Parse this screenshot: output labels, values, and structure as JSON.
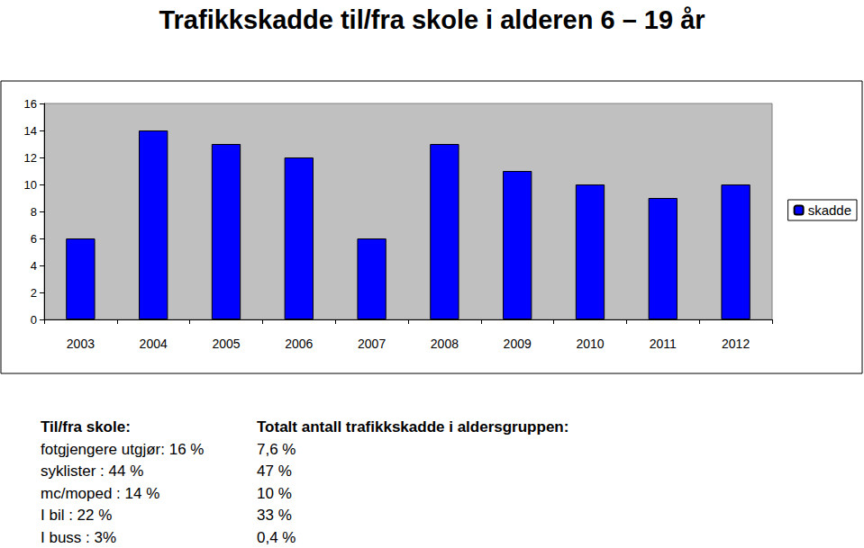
{
  "chart_data": {
    "type": "bar",
    "title": "Trafikkskadde til/fra skole i alderen 6 – 19 år",
    "categories": [
      "2003",
      "2004",
      "2005",
      "2006",
      "2007",
      "2008",
      "2009",
      "2010",
      "2011",
      "2012"
    ],
    "series": [
      {
        "name": "skadde",
        "color": "#0000ff",
        "values": [
          6,
          14,
          13,
          12,
          6,
          13,
          11,
          10,
          9,
          10
        ]
      }
    ],
    "ylim": [
      0,
      16
    ],
    "yticks": [
      0,
      2,
      4,
      6,
      8,
      10,
      12,
      14,
      16
    ],
    "grid": false,
    "legend": "right",
    "annotations": [
      [
        "Til/fra skole:",
        "fotgjengere utgjør: 16 %",
        "syklister : 44 %",
        "mc/moped : 14 %",
        "I bil : 22 %",
        "I buss : 3%"
      ],
      [
        "Totalt antall trafikkskadde i aldersgruppen:",
        "7,6 %",
        "47 %",
        "10 %",
        "33 %",
        "0,4 %"
      ]
    ]
  }
}
